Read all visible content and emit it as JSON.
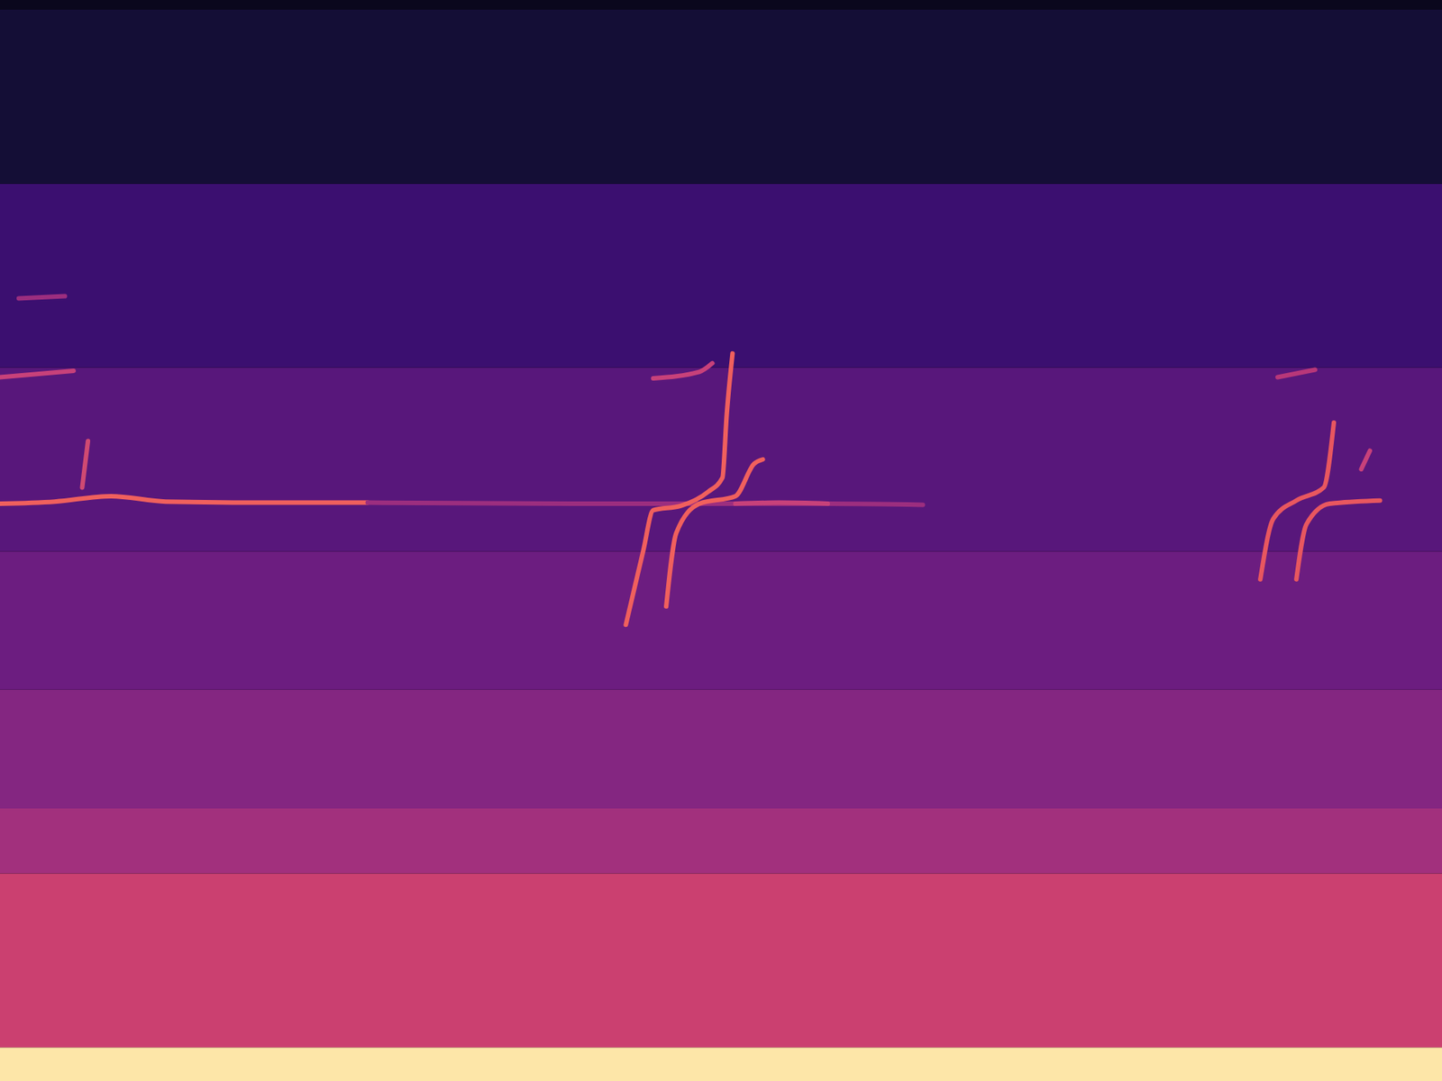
{
  "chart_data": {
    "type": "spectrogram",
    "tick_labels": false,
    "xlim": [
      0,
      100
    ],
    "ylim": [
      0,
      100
    ],
    "bands": {
      "edges": [
        0,
        3.1,
        19.2,
        25.2,
        36.2,
        49,
        66,
        83,
        99.1,
        100
      ],
      "levels": [
        0.95,
        0.55,
        0.45,
        0.38,
        0.32,
        0.27,
        0.2,
        0.1,
        0.05
      ]
    },
    "series": [
      {
        "color": "#f0605d",
        "x": [
          0,
          3.8,
          7.7,
          11.5,
          19.1,
          25.5
        ],
        "values": [
          53.4,
          53.6,
          54.1,
          53.6,
          53.5,
          53.5
        ]
      },
      {
        "color": "#9c2e7f",
        "x": [
          25.5,
          40,
          57.4,
          64
        ],
        "values": [
          53.5,
          53.4,
          53.4,
          53.3
        ]
      },
      {
        "color": "#f0605d",
        "x": [
          43.4,
          44.6,
          45.3,
          47.2,
          49.1,
          50.1,
          50.4,
          50.8
        ],
        "values": [
          42.2,
          49,
          52.8,
          53.2,
          54.5,
          55.8,
          61.7,
          67.3
        ]
      },
      {
        "color": "#f0605d",
        "x": [
          46.2,
          46.9,
          48.5,
          51,
          52.3,
          52.9
        ],
        "values": [
          43.9,
          50.7,
          53.4,
          54.1,
          57.1,
          57.5
        ]
      },
      {
        "color": "#c8417a",
        "x": [
          51,
          54,
          57.4
        ],
        "values": [
          53.4,
          53.5,
          53.4
        ]
      },
      {
        "color": "#c8417a",
        "x": [
          45.3,
          48.5,
          49.4
        ],
        "values": [
          65,
          65.6,
          66.4
        ]
      },
      {
        "color": "#e8575f",
        "x": [
          87.4,
          88.3,
          89.9,
          91.8,
          92.5
        ],
        "values": [
          46.4,
          52,
          53.7,
          54.9,
          60.9
        ]
      },
      {
        "color": "#e8575f",
        "x": [
          89.9,
          90.6,
          92.2,
          95.7
        ],
        "values": [
          46.4,
          51.5,
          53.4,
          53.7
        ]
      },
      {
        "color": "#c8417a",
        "x": [
          94.4,
          95
        ],
        "values": [
          56.6,
          58.3
        ]
      },
      {
        "color": "#b83779",
        "x": [
          88.6,
          91.2
        ],
        "values": [
          65.1,
          65.8
        ]
      },
      {
        "color": "#c8417a",
        "x": [
          0,
          5.1
        ],
        "values": [
          65.1,
          65.7
        ]
      },
      {
        "color": "#9c2e7f",
        "x": [
          1.3,
          4.5
        ],
        "values": [
          72.4,
          72.6
        ]
      },
      {
        "color": "#d04a72",
        "x": [
          5.7,
          6.1
        ],
        "values": [
          54.9,
          59.2
        ]
      }
    ]
  }
}
